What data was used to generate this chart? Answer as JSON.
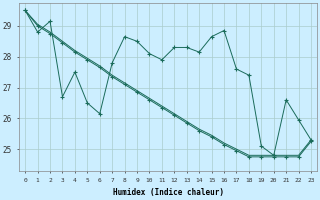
{
  "xlabel": "Humidex (Indice chaleur)",
  "background_color": "#cceeff",
  "grid_color": "#aacccc",
  "line_color": "#1a6b5a",
  "ylim": [
    24.3,
    29.75
  ],
  "yticks": [
    25,
    26,
    27,
    28,
    29
  ],
  "xlim": [
    -0.5,
    23.5
  ],
  "xticks": [
    0,
    1,
    2,
    3,
    4,
    5,
    6,
    7,
    8,
    9,
    10,
    11,
    12,
    13,
    14,
    15,
    16,
    17,
    18,
    19,
    20,
    21,
    22,
    23
  ],
  "series_wavy": [
    29.5,
    28.8,
    29.15,
    26.7,
    27.5,
    26.5,
    26.15,
    27.8,
    28.65,
    28.5,
    28.1,
    27.9,
    28.3,
    28.3,
    28.15,
    28.65,
    28.85,
    27.6,
    27.4,
    25.1,
    24.8,
    26.6,
    25.95,
    25.3
  ],
  "series_trend_lo": [
    29.5,
    29.0,
    28.75,
    28.45,
    28.15,
    27.9,
    27.65,
    27.35,
    27.1,
    26.85,
    26.6,
    26.35,
    26.1,
    25.85,
    25.6,
    25.4,
    25.15,
    24.95,
    24.75,
    24.75,
    24.75,
    24.75,
    24.75,
    25.25
  ],
  "series_trend_hi": [
    29.5,
    29.05,
    28.8,
    28.5,
    28.2,
    27.95,
    27.7,
    27.4,
    27.15,
    26.9,
    26.65,
    26.4,
    26.15,
    25.9,
    25.65,
    25.45,
    25.2,
    25.0,
    24.8,
    24.8,
    24.8,
    24.8,
    24.8,
    25.3
  ]
}
